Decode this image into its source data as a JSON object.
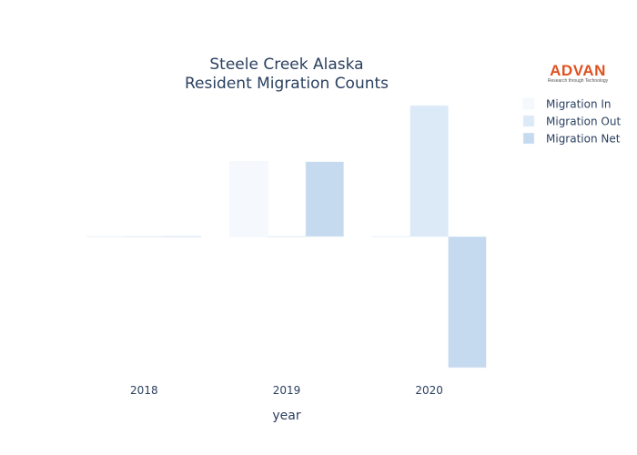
{
  "logo": {
    "name": "ADVAN",
    "tagline": "Research through Technology",
    "color": "#e0511f",
    "tag_color": "#555555"
  },
  "chart_data": {
    "type": "bar",
    "title": "Steele Creek Alaska",
    "subtitle": "Resident Migration Counts",
    "xlabel": "year",
    "ylabel": "",
    "categories": [
      "2018",
      "2019",
      "2020"
    ],
    "series": [
      {
        "name": "Migration In",
        "color": "#f5f9fd",
        "values": [
          0,
          2,
          0
        ]
      },
      {
        "name": "Migration Out",
        "color": "#dce9f6",
        "values": [
          0,
          0,
          3.5
        ]
      },
      {
        "name": "Migration Net",
        "color": "#c5daee",
        "values": [
          0,
          2,
          -3.5
        ]
      }
    ],
    "ylim": [
      -3.5,
      3.5
    ],
    "grid": false,
    "y_tick_labels_shown": false,
    "legend_position": "top-right"
  }
}
